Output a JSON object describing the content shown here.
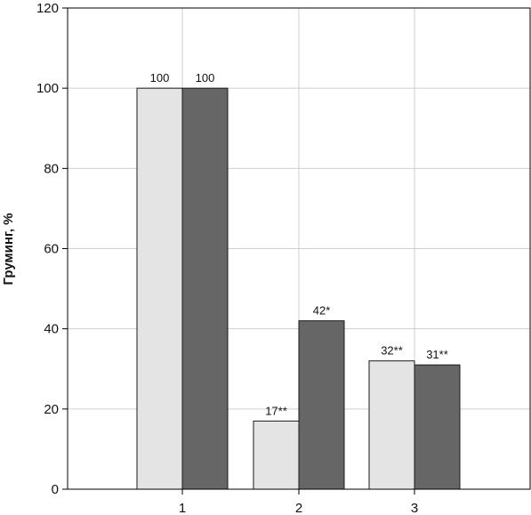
{
  "chart_data": {
    "type": "bar",
    "title": "",
    "xlabel": "",
    "ylabel": "Груминг, %",
    "categories": [
      "1",
      "2",
      "3"
    ],
    "series": [
      {
        "values": [
          100,
          17,
          32
        ],
        "labels": [
          "100",
          "17**",
          "32**"
        ],
        "color": "#e4e4e4"
      },
      {
        "values": [
          100,
          42,
          31
        ],
        "labels": [
          "100",
          "42*",
          "31**"
        ],
        "color": "#666666"
      }
    ],
    "yticks": [
      "0",
      "20",
      "40",
      "60",
      "80",
      "100",
      "120"
    ],
    "ylim": [
      0,
      120
    ],
    "grid": true,
    "legend": "none"
  }
}
